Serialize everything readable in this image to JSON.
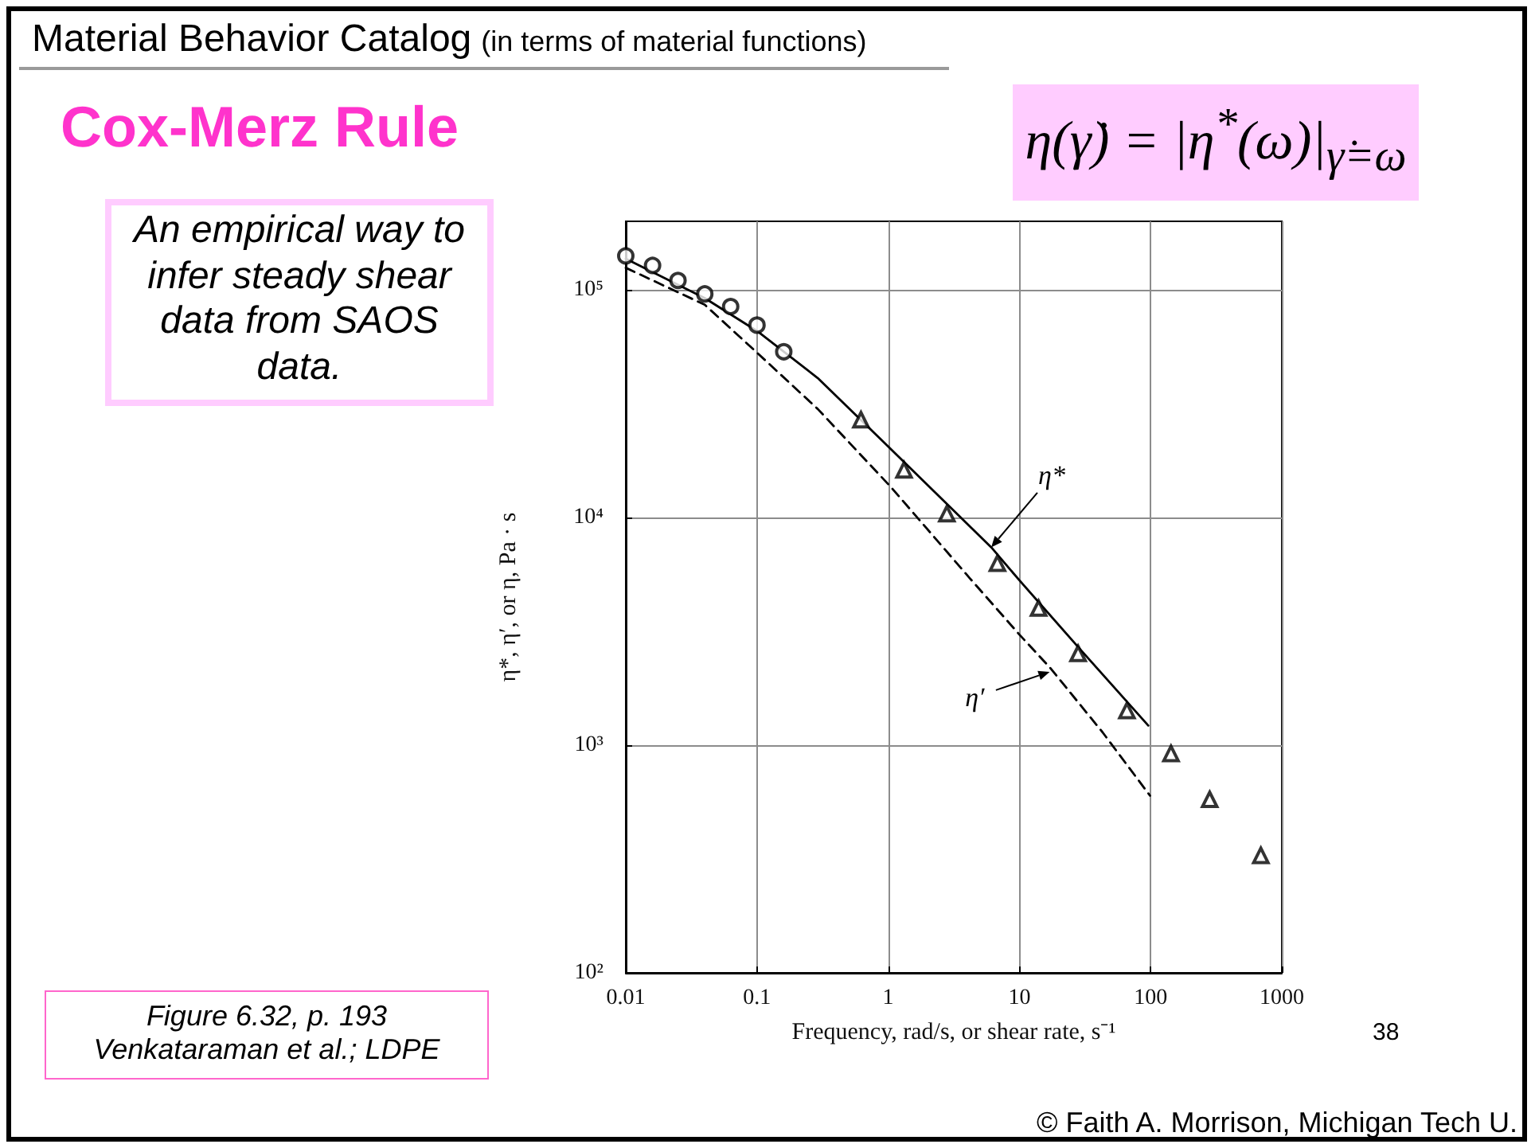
{
  "chart_data": {
    "type": "line",
    "title": "Cox-Merz Rule",
    "xlabel": "Frequency, rad/s, or shear rate, s⁻¹",
    "ylabel": "η*, η′, or η, Pa · s",
    "log": "xy",
    "xlim": [
      0.01,
      1000
    ],
    "xticks": [
      0.01,
      0.1,
      1,
      10,
      100,
      1000
    ],
    "ylim": [
      100,
      200000
    ],
    "yticks": [
      {
        "value": 100,
        "label": "10²"
      },
      {
        "value": 1000,
        "label": "10³"
      },
      {
        "value": 10000,
        "label": "10⁴"
      },
      {
        "value": 100000,
        "label": "10⁵"
      }
    ],
    "grid": true,
    "series": [
      {
        "type": "line",
        "color": "#000000",
        "marker": "none",
        "line_style": "solid",
        "x": [
          0.01,
          0.04,
          0.1,
          0.29,
          0.96,
          6.1,
          10,
          28,
          96
        ],
        "values": [
          137000,
          92000,
          66000,
          41000,
          21000,
          7400,
          5300,
          2700,
          1220
        ]
      },
      {
        "type": "line",
        "color": "#000000",
        "marker": "none",
        "line_style": "dashed",
        "x": [
          0.01,
          0.04,
          0.1,
          0.29,
          1.05,
          4.2,
          10,
          17,
          43,
          99
        ],
        "values": [
          125000,
          86000,
          53000,
          30000,
          13600,
          5400,
          3060,
          2200,
          1140,
          600
        ]
      },
      {
        "type": "scatter",
        "color": "#000000",
        "marker": "circle",
        "x": [
          0.01,
          0.016,
          0.025,
          0.04,
          0.063,
          0.1,
          0.16
        ],
        "values": [
          141000,
          128000,
          110000,
          96000,
          84500,
          70000,
          53500
        ]
      },
      {
        "type": "scatter",
        "color": "#000000",
        "marker": "triangle",
        "x": [
          0.62,
          1.32,
          2.8,
          6.8,
          14,
          28,
          66,
          143,
          282,
          692
        ],
        "values": [
          26900,
          16200,
          10400,
          6300,
          4000,
          2530,
          1420,
          920,
          578,
          328
        ]
      }
    ],
    "annotations": [
      "Material Behavior Catalog",
      "(in terms of material functions)",
      "η(γ̇) = |η$^{*}$(ω)|$_{γ̇=ω}$",
      "An empirical way to infer steady shear data from SAOS data.",
      "Figure 6.32, p. 193\nVenkataraman et al.; LDPE",
      "38",
      "© Faith A. Morrison, Michigan Tech U.",
      {
        "text": "η*",
        "x": 6.1,
        "y": 7400
      },
      {
        "text": "η′",
        "x": 17,
        "y": 2100
      }
    ]
  }
}
